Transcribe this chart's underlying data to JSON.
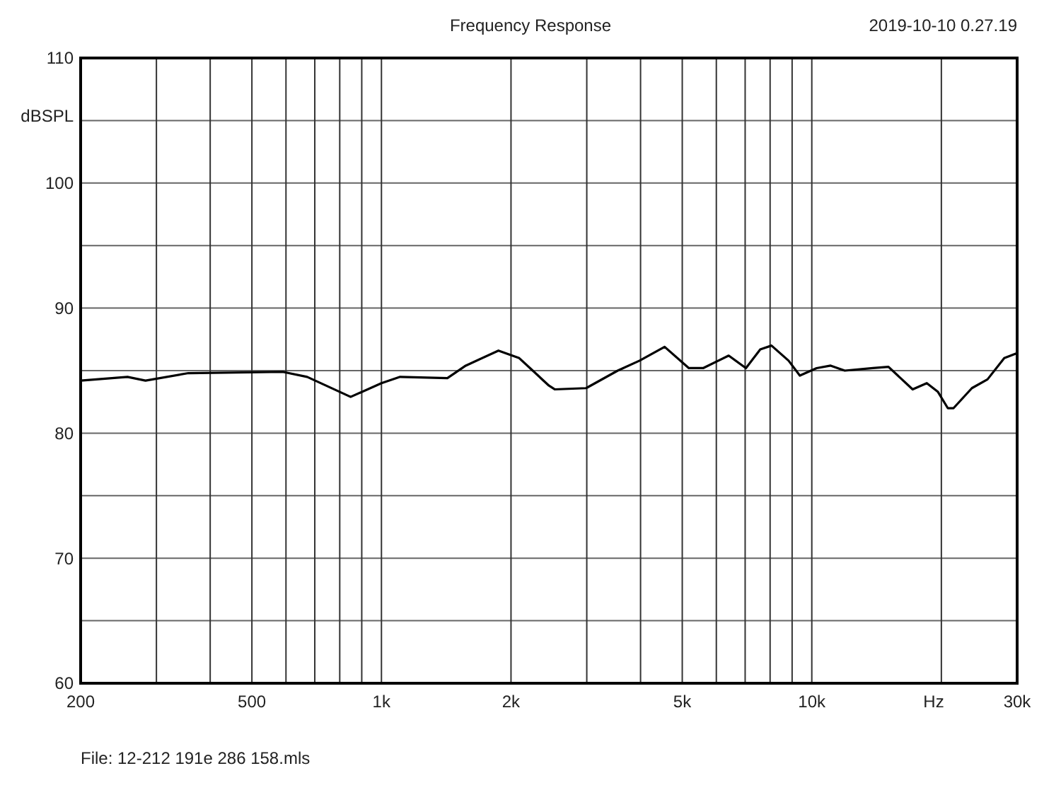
{
  "chart_data": {
    "type": "line",
    "title": "Frequency Response",
    "xlabel": "Hz",
    "ylabel": "dBSPL",
    "annotations": [
      "2019-10-10 0.27.19",
      "File: 12-212 191e 286 158.mls"
    ],
    "log": "x",
    "grid": true,
    "line_style": "solid",
    "marker": "none",
    "xlim": [
      200,
      30000
    ],
    "ylim": [
      60,
      110
    ],
    "xticks": [
      {
        "value": 200,
        "label": "200"
      },
      {
        "value": 300,
        "label": null
      },
      {
        "value": 400,
        "label": null
      },
      {
        "value": 500,
        "label": "500"
      },
      {
        "value": 600,
        "label": null
      },
      {
        "value": 700,
        "label": null
      },
      {
        "value": 800,
        "label": null
      },
      {
        "value": 900,
        "label": null
      },
      {
        "value": 1000,
        "label": "1k"
      },
      {
        "value": 2000,
        "label": "2k"
      },
      {
        "value": 3000,
        "label": null
      },
      {
        "value": 4000,
        "label": null
      },
      {
        "value": 5000,
        "label": "5k"
      },
      {
        "value": 6000,
        "label": null
      },
      {
        "value": 7000,
        "label": null
      },
      {
        "value": 8000,
        "label": null
      },
      {
        "value": 9000,
        "label": null
      },
      {
        "value": 10000,
        "label": "10k"
      },
      {
        "value": 20000,
        "label": null
      },
      {
        "value": 30000,
        "label": "30k"
      }
    ],
    "yticks": [
      60,
      {
        "value": 65,
        "label": null
      },
      70,
      {
        "value": 75,
        "label": null
      },
      80,
      {
        "value": 85,
        "label": null
      },
      90,
      {
        "value": 95,
        "label": null
      },
      100,
      {
        "value": 105,
        "label": null
      },
      110
    ],
    "series": [
      {
        "color": "#000000",
        "x": [
          200,
          257,
          283,
          356,
          590,
          672,
          848,
          1000,
          1105,
          1423,
          1570,
          1870,
          2090,
          2450,
          2530,
          2990,
          3540,
          3980,
          4550,
          5180,
          5590,
          6410,
          7030,
          7590,
          8060,
          8830,
          9380,
          10260,
          11060,
          11930,
          13870,
          15070,
          17150,
          18500,
          19640,
          20700,
          21350,
          23550,
          25600,
          28000,
          30000
        ],
        "values": [
          84.2,
          84.5,
          84.2,
          84.8,
          84.9,
          84.5,
          82.9,
          84.0,
          84.5,
          84.4,
          85.4,
          86.6,
          86.0,
          83.8,
          83.5,
          83.6,
          85.0,
          85.8,
          86.9,
          85.2,
          85.2,
          86.2,
          85.2,
          86.7,
          87.0,
          85.8,
          84.6,
          85.2,
          85.4,
          85.0,
          85.2,
          85.3,
          83.5,
          84.0,
          83.3,
          82.0,
          82.0,
          83.6,
          84.3,
          86.0,
          86.4
        ]
      }
    ]
  }
}
